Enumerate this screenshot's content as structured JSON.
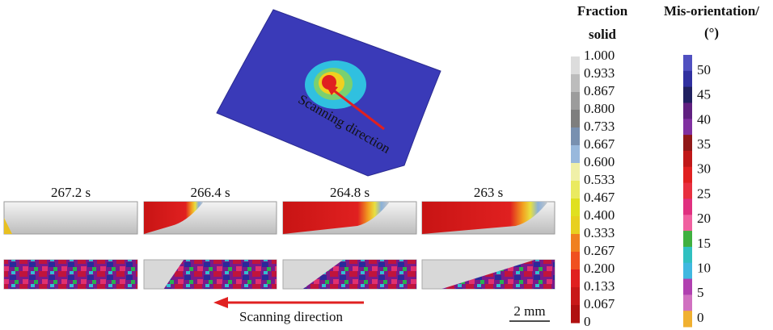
{
  "figure": {
    "fraction_colorbar": {
      "title": [
        "Fraction",
        "solid"
      ],
      "labels": [
        "1.000",
        "0.933",
        "0.867",
        "0.800",
        "0.733",
        "0.667",
        "0.600",
        "0.533",
        "0.467",
        "0.400",
        "0.333",
        "0.267",
        "0.200",
        "0.133",
        "0.067",
        "0"
      ]
    },
    "misorientation_colorbar": {
      "title": [
        "Mis-orientation/",
        "(°)"
      ],
      "labels": [
        "50",
        "45",
        "40",
        "35",
        "30",
        "25",
        "20",
        "15",
        "10",
        "5",
        "0"
      ]
    },
    "time_labels": [
      "267.2 s",
      "266.4 s",
      "264.8 s",
      "263 s"
    ],
    "annotations": {
      "top_arrow": "Scanning direction",
      "bottom_arrow": "Scanning direction"
    },
    "scale_bar": "2 mm"
  }
}
